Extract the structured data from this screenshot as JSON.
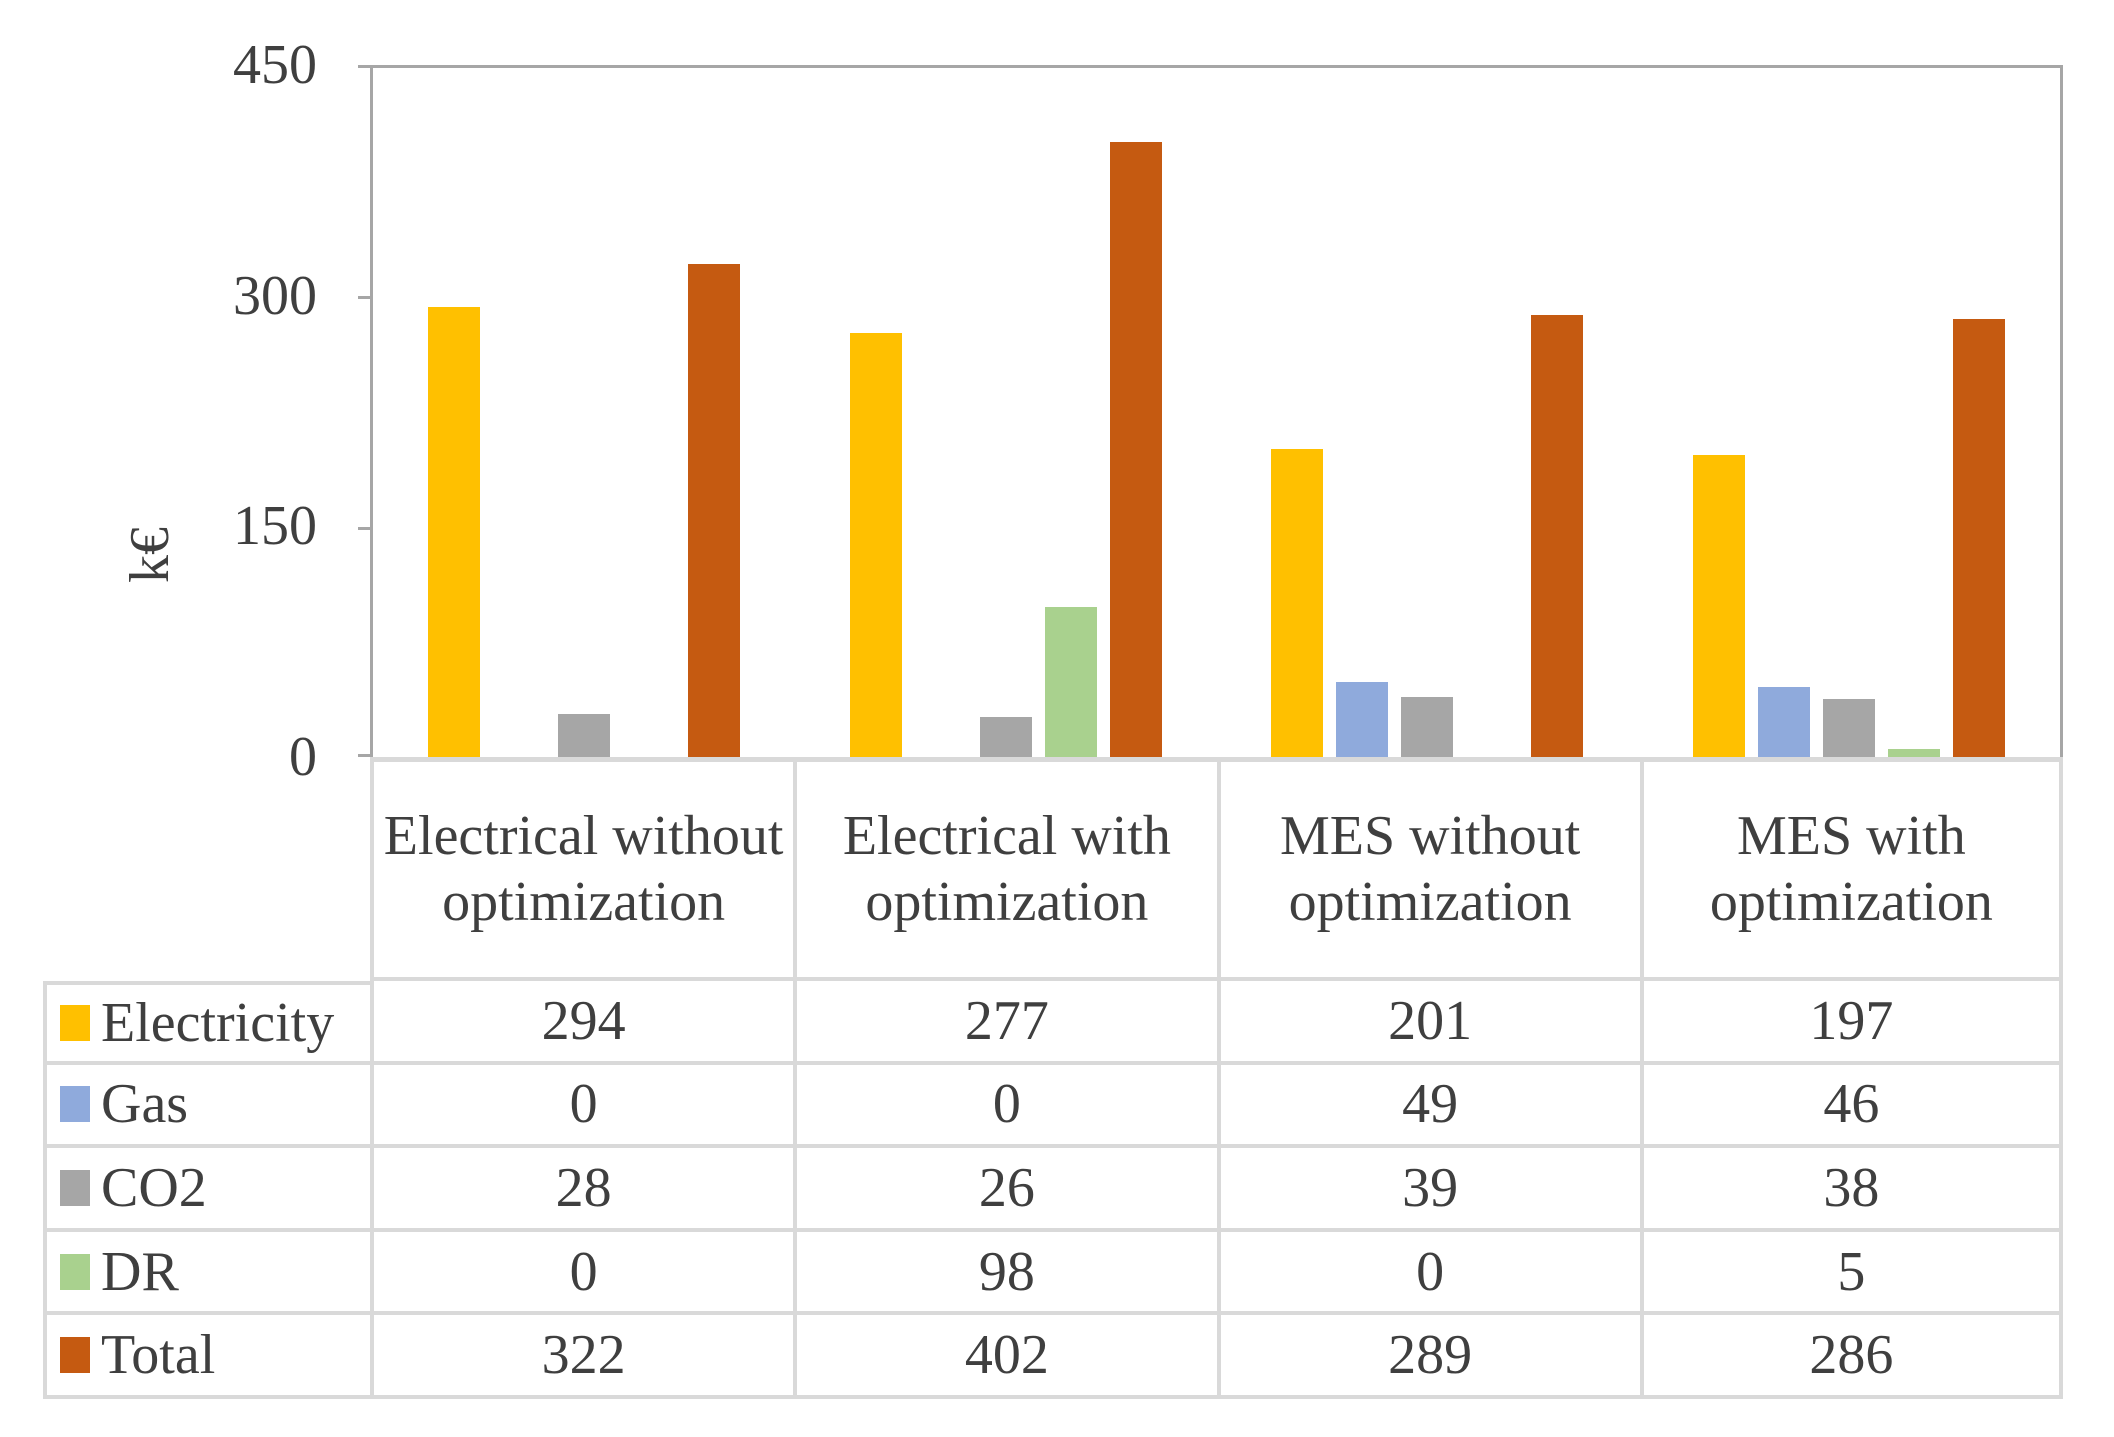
{
  "chart_data": {
    "type": "bar",
    "title": "",
    "xlabel": "",
    "ylabel": "k€",
    "ylim": [
      0,
      450
    ],
    "yticks": [
      "450",
      "300",
      "150",
      "0"
    ],
    "grid": false,
    "legend_position": "table-left",
    "categories": [
      "Electrical without optimization",
      "Electrical with optimization",
      "MES without optimization",
      "MES with optimization"
    ],
    "series": [
      {
        "name": "Electricity",
        "color": "#FFC000",
        "values": [
          294,
          277,
          201,
          197
        ]
      },
      {
        "name": "Gas",
        "color": "#8FAADC",
        "values": [
          0,
          0,
          49,
          46
        ]
      },
      {
        "name": "CO2",
        "color": "#A6A6A6",
        "values": [
          28,
          26,
          39,
          38
        ]
      },
      {
        "name": "DR",
        "color": "#A9D18E",
        "values": [
          0,
          98,
          0,
          5
        ]
      },
      {
        "name": "Total",
        "color": "#C55A11",
        "values": [
          322,
          402,
          289,
          286
        ]
      }
    ],
    "colors": {
      "plot_border": "#A6A6A6",
      "table_border": "#D9D9D9",
      "text": "#3F3F3F",
      "background": "#FFFFFF"
    }
  }
}
